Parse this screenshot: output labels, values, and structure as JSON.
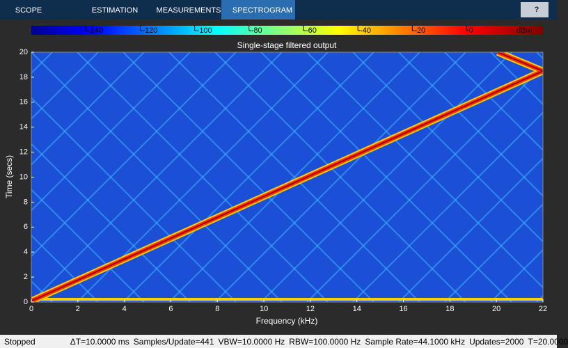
{
  "toolbar": {
    "tabs": [
      "SCOPE",
      "ESTIMATION",
      "MEASUREMENTS",
      "SPECTROGRAM"
    ],
    "active_tab": 3,
    "help": "?"
  },
  "colorbar": {
    "lim": [
      -160,
      28
    ],
    "ticks": [
      -140,
      -120,
      -100,
      -80,
      -60,
      -40,
      -20,
      0
    ],
    "unit": "dBm"
  },
  "chart_data": {
    "type": "spectrogram",
    "title": "Single-stage filtered output",
    "x_label": "Frequency (kHz)",
    "y_label": "Time (secs)",
    "xlim": [
      0,
      22
    ],
    "xticks": [
      0,
      2,
      4,
      6,
      8,
      10,
      12,
      14,
      16,
      18,
      20,
      22
    ],
    "ylim": [
      0,
      20
    ],
    "yticks": [
      0,
      2,
      4,
      6,
      8,
      10,
      12,
      14,
      16,
      18,
      20
    ]
  },
  "status_bar": {
    "state": "Stopped",
    "items": [
      "ΔT=10.0000 ms",
      "Samples/Update=441",
      "VBW=10.0000 Hz",
      "RBW=100.0000 Hz",
      "Sample Rate=44.1000 kHz",
      "Updates=2000",
      "T=20.0000"
    ]
  }
}
